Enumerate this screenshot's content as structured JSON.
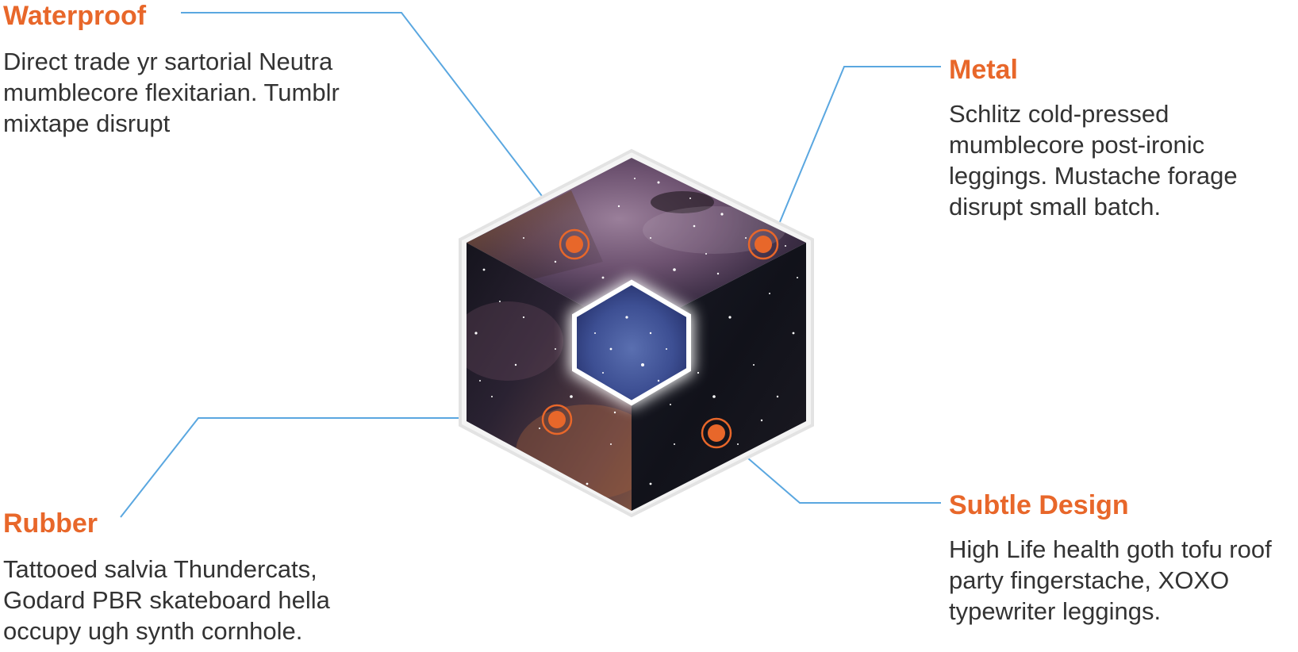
{
  "colors": {
    "accent": "#e8672a",
    "connector": "#5aa7e0",
    "text": "#333333",
    "hex_border": "#e6e6e6",
    "inner_glow": "#ffffff"
  },
  "callouts": {
    "waterproof": {
      "title": "Waterproof",
      "text": "Direct trade yr sartorial Neutra mumblecore flexitarian. Tumblr mixtape disrupt"
    },
    "metal": {
      "title": "Metal",
      "text": "Schlitz cold-pressed mumblecore post-ironic leggings. Mustache forage disrupt small batch."
    },
    "rubber": {
      "title": "Rubber",
      "text": "Tattooed salvia Thundercats, Godard PBR skateboard hella occupy ugh synth cornhole."
    },
    "subtle": {
      "title": "Subtle Design",
      "text": "High Life health goth tofu roof party fingerstache, XOXO typewriter leggings."
    }
  }
}
